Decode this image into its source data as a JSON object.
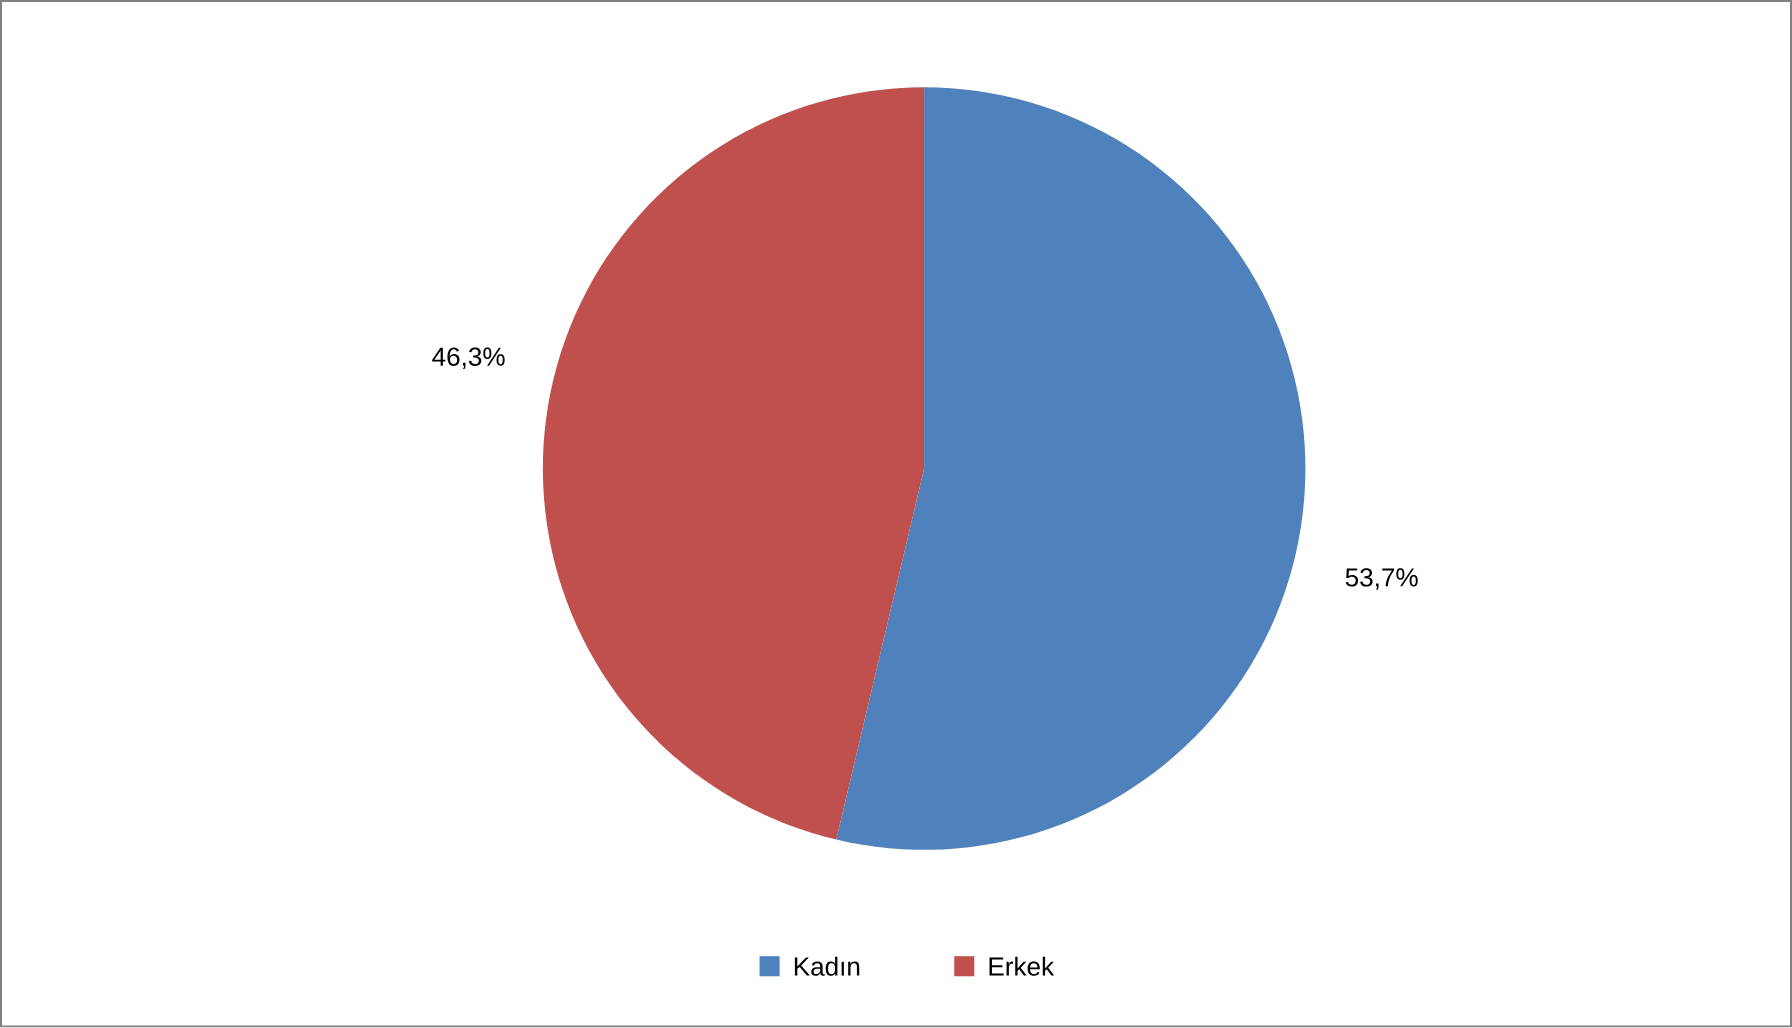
{
  "chart_data": {
    "type": "pie",
    "categories": [
      "Kadın",
      "Erkek"
    ],
    "values": [
      53.7,
      46.3
    ],
    "colors": [
      "#4f81bd",
      "#c0504d"
    ],
    "value_labels": [
      "53,7%",
      "46,3%"
    ],
    "legend": "bottom"
  }
}
